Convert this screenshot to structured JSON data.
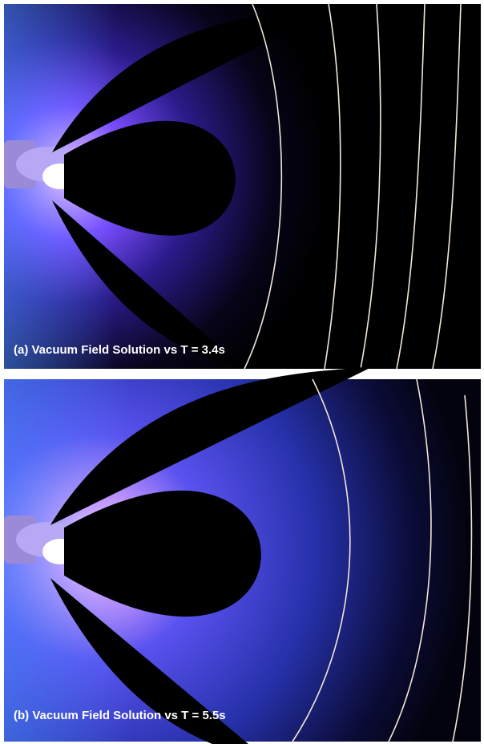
{
  "panels": [
    {
      "caption": "(a) Vacuum Field Solution vs T = 3.4s"
    },
    {
      "caption": "(b) Vacuum Field Solution vs T = 5.5s"
    }
  ]
}
